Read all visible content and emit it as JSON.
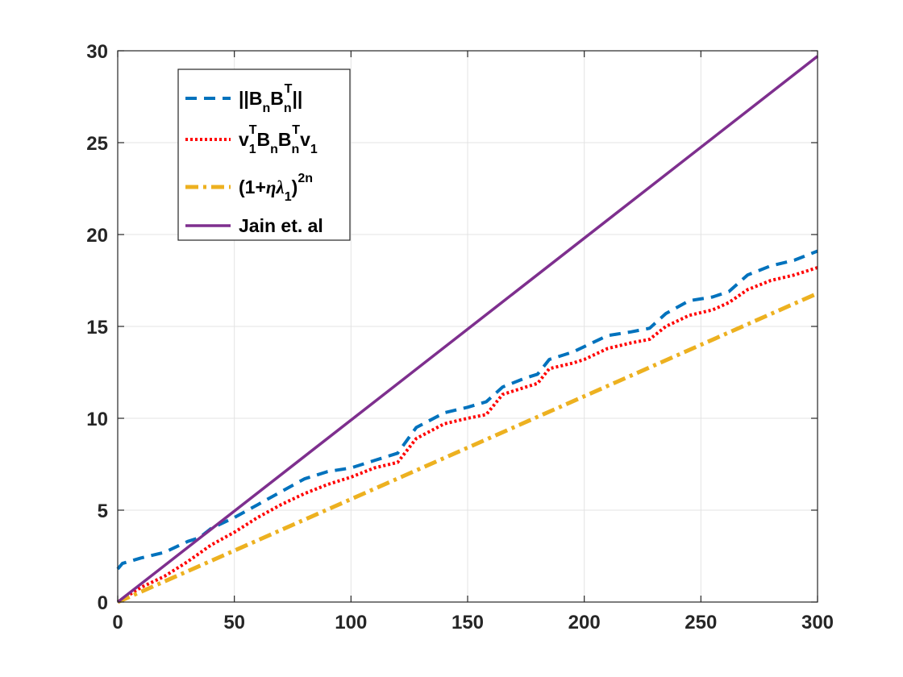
{
  "chart_data": {
    "type": "line",
    "title": "",
    "xlabel": "",
    "ylabel": "",
    "xlim": [
      0,
      300
    ],
    "ylim": [
      0,
      30
    ],
    "xticks": [
      0,
      50,
      100,
      150,
      200,
      250,
      300
    ],
    "yticks": [
      0,
      5,
      10,
      15,
      20,
      25,
      30
    ],
    "xtick_labels": [
      "0",
      "50",
      "100",
      "150",
      "200",
      "250",
      "300"
    ],
    "ytick_labels": [
      "0",
      "5",
      "10",
      "15",
      "20",
      "25",
      "30"
    ],
    "grid": true,
    "legend_position": "top-left",
    "series": [
      {
        "name": "||B_n B_n^T||",
        "color": "#0072BD",
        "style": "dashed",
        "x": [
          0,
          2,
          10,
          20,
          30,
          35,
          40,
          50,
          60,
          70,
          80,
          90,
          100,
          110,
          120,
          128,
          140,
          150,
          158,
          165,
          175,
          180,
          185,
          195,
          200,
          210,
          220,
          228,
          235,
          245,
          255,
          262,
          270,
          280,
          290,
          300
        ],
        "y": [
          1.8,
          2.1,
          2.4,
          2.7,
          3.3,
          3.5,
          4.0,
          4.6,
          5.3,
          6.0,
          6.7,
          7.1,
          7.3,
          7.7,
          8.1,
          9.5,
          10.3,
          10.6,
          10.9,
          11.7,
          12.2,
          12.4,
          13.2,
          13.6,
          13.9,
          14.5,
          14.7,
          14.9,
          15.7,
          16.4,
          16.6,
          16.9,
          17.8,
          18.3,
          18.6,
          19.1
        ]
      },
      {
        "name": "v_1^T B_n B_n^T v_1",
        "color": "#FF0000",
        "style": "dotted",
        "x": [
          0,
          10,
          20,
          30,
          40,
          50,
          60,
          70,
          80,
          90,
          100,
          110,
          120,
          128,
          140,
          150,
          158,
          165,
          175,
          180,
          185,
          195,
          200,
          210,
          220,
          228,
          235,
          245,
          255,
          262,
          270,
          280,
          290,
          300
        ],
        "y": [
          0.0,
          0.8,
          1.4,
          2.2,
          3.1,
          3.8,
          4.6,
          5.3,
          5.9,
          6.4,
          6.8,
          7.3,
          7.6,
          8.9,
          9.7,
          10.0,
          10.2,
          11.3,
          11.7,
          11.9,
          12.7,
          13.0,
          13.2,
          13.8,
          14.1,
          14.3,
          15.0,
          15.6,
          15.9,
          16.3,
          17.0,
          17.5,
          17.8,
          18.2
        ]
      },
      {
        "name": "(1+ηλ_1)^{2n}",
        "color": "#EDB120",
        "style": "dash-dot",
        "x": [
          0,
          300
        ],
        "y": [
          0,
          16.8
        ]
      },
      {
        "name": "Jain et. al",
        "color": "#7E2F8E",
        "style": "solid",
        "x": [
          0,
          300
        ],
        "y": [
          0,
          29.7
        ]
      }
    ]
  }
}
